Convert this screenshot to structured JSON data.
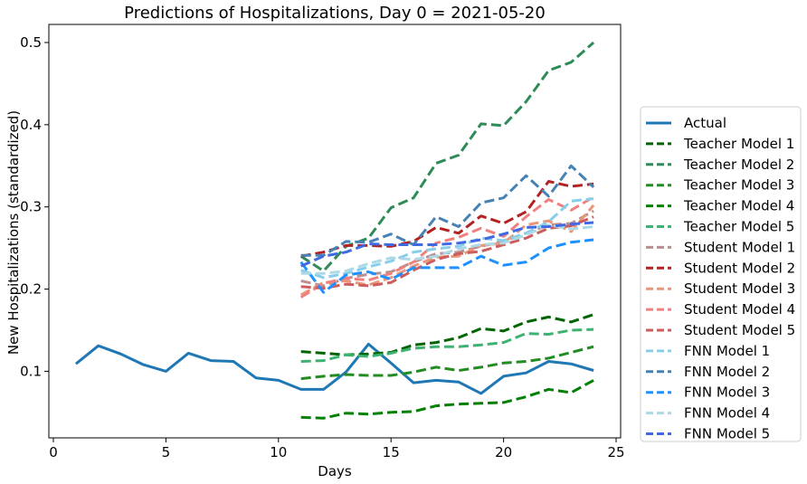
{
  "chart_data": {
    "type": "line",
    "title": "Predictions of Hospitalizations, Day 0 = 2021-05-20",
    "xlabel": "Days",
    "ylabel": "New Hospitalizations (standardized)",
    "xlim": [
      -0.2,
      25.2
    ],
    "ylim": [
      0.019,
      0.522
    ],
    "xticks": [
      0,
      5,
      10,
      15,
      20,
      25
    ],
    "yticks": [
      0.1,
      0.2,
      0.3,
      0.4,
      0.5
    ],
    "grid": false,
    "legend_position": "right",
    "pred_x": [
      11,
      12,
      13,
      14,
      15,
      16,
      17,
      18,
      19,
      20,
      21,
      22,
      23,
      24
    ],
    "series": [
      {
        "name": "Actual",
        "color": "#1f77b4",
        "dashed": false,
        "x": [
          1,
          2,
          3,
          4,
          5,
          6,
          7,
          8,
          9,
          10,
          11,
          12,
          13,
          14,
          15,
          16,
          17,
          18,
          19,
          20,
          21,
          22,
          23,
          24
        ],
        "values": [
          0.109,
          0.131,
          0.121,
          0.108,
          0.1,
          0.122,
          0.113,
          0.112,
          0.092,
          0.089,
          0.078,
          0.078,
          0.099,
          0.133,
          0.11,
          0.086,
          0.089,
          0.087,
          0.073,
          0.094,
          0.098,
          0.112,
          0.109,
          0.101
        ]
      },
      {
        "name": "Teacher Model 1",
        "color": "#006400",
        "dashed": true,
        "values": [
          0.124,
          0.122,
          0.12,
          0.121,
          0.123,
          0.132,
          0.135,
          0.141,
          0.152,
          0.149,
          0.16,
          0.166,
          0.16,
          0.169
        ]
      },
      {
        "name": "Teacher Model 2",
        "color": "#2e8b57",
        "dashed": true,
        "values": [
          0.24,
          0.222,
          0.252,
          0.262,
          0.299,
          0.311,
          0.353,
          0.363,
          0.401,
          0.399,
          0.428,
          0.466,
          0.476,
          0.5
        ]
      },
      {
        "name": "Teacher Model 3",
        "color": "#228b22",
        "dashed": true,
        "values": [
          0.091,
          0.094,
          0.096,
          0.095,
          0.095,
          0.099,
          0.105,
          0.101,
          0.105,
          0.11,
          0.112,
          0.116,
          0.123,
          0.13
        ]
      },
      {
        "name": "Teacher Model 4",
        "color": "#008000",
        "dashed": true,
        "values": [
          0.044,
          0.043,
          0.049,
          0.048,
          0.05,
          0.051,
          0.058,
          0.06,
          0.061,
          0.062,
          0.069,
          0.078,
          0.074,
          0.089
        ]
      },
      {
        "name": "Teacher Model 5",
        "color": "#3cb371",
        "dashed": true,
        "values": [
          0.112,
          0.113,
          0.12,
          0.118,
          0.122,
          0.128,
          0.13,
          0.13,
          0.132,
          0.135,
          0.146,
          0.145,
          0.15,
          0.151
        ]
      },
      {
        "name": "Student Model 1",
        "color": "#bc8f8f",
        "dashed": true,
        "values": [
          0.21,
          0.204,
          0.213,
          0.218,
          0.221,
          0.233,
          0.243,
          0.245,
          0.252,
          0.258,
          0.268,
          0.278,
          0.28,
          0.295
        ]
      },
      {
        "name": "Student Model 2",
        "color": "#b22222",
        "dashed": true,
        "values": [
          0.24,
          0.245,
          0.253,
          0.253,
          0.252,
          0.258,
          0.275,
          0.268,
          0.289,
          0.28,
          0.294,
          0.331,
          0.325,
          0.328
        ]
      },
      {
        "name": "Student Model 3",
        "color": "#e9967a",
        "dashed": true,
        "values": [
          0.193,
          0.208,
          0.21,
          0.205,
          0.214,
          0.228,
          0.239,
          0.24,
          0.253,
          0.256,
          0.278,
          0.283,
          0.27,
          0.302
        ]
      },
      {
        "name": "Student Model 4",
        "color": "#f08080",
        "dashed": true,
        "values": [
          0.19,
          0.207,
          0.213,
          0.211,
          0.219,
          0.233,
          0.256,
          0.263,
          0.274,
          0.264,
          0.288,
          0.309,
          0.296,
          0.312
        ]
      },
      {
        "name": "Student Model 5",
        "color": "#cd5c5c",
        "dashed": true,
        "values": [
          0.203,
          0.201,
          0.206,
          0.204,
          0.208,
          0.223,
          0.236,
          0.243,
          0.246,
          0.254,
          0.262,
          0.274,
          0.277,
          0.288
        ]
      },
      {
        "name": "FNN Model 1",
        "color": "#87ceeb",
        "dashed": true,
        "values": [
          0.223,
          0.214,
          0.219,
          0.227,
          0.234,
          0.245,
          0.249,
          0.252,
          0.262,
          0.259,
          0.268,
          0.282,
          0.307,
          0.31
        ]
      },
      {
        "name": "FNN Model 2",
        "color": "#4682b4",
        "dashed": true,
        "values": [
          0.241,
          0.241,
          0.258,
          0.257,
          0.267,
          0.254,
          0.288,
          0.276,
          0.305,
          0.311,
          0.338,
          0.313,
          0.35,
          0.324
        ]
      },
      {
        "name": "FNN Model 3",
        "color": "#1e90ff",
        "dashed": true,
        "values": [
          0.233,
          0.196,
          0.217,
          0.221,
          0.212,
          0.226,
          0.226,
          0.226,
          0.24,
          0.229,
          0.233,
          0.25,
          0.257,
          0.26
        ]
      },
      {
        "name": "FNN Model 4",
        "color": "#add8e6",
        "dashed": true,
        "values": [
          0.219,
          0.219,
          0.222,
          0.231,
          0.238,
          0.236,
          0.24,
          0.249,
          0.254,
          0.256,
          0.266,
          0.278,
          0.273,
          0.276
        ]
      },
      {
        "name": "FNN Model 5",
        "color": "#4169e1",
        "dashed": true,
        "values": [
          0.228,
          0.24,
          0.245,
          0.255,
          0.254,
          0.254,
          0.254,
          0.256,
          0.26,
          0.267,
          0.275,
          0.276,
          0.279,
          0.281
        ]
      }
    ]
  }
}
